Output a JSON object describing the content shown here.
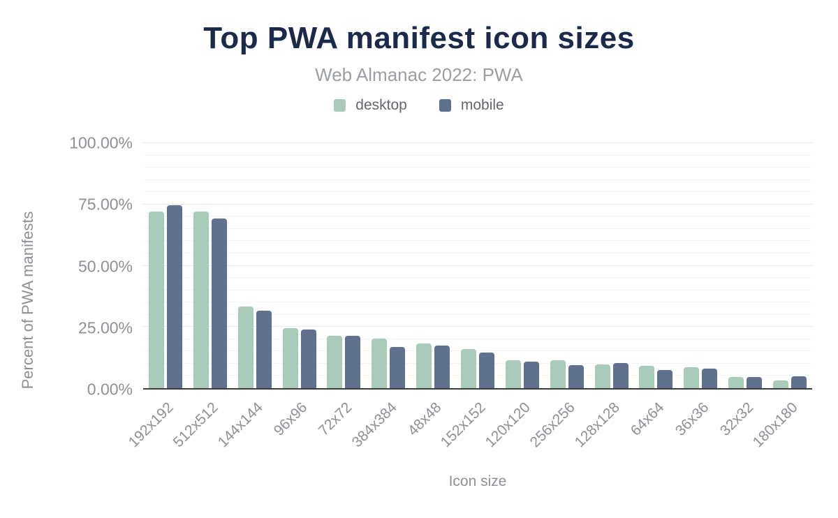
{
  "header": {
    "title": "Top PWA manifest icon sizes",
    "subtitle": "Web Almanac 2022: PWA"
  },
  "colors": {
    "title": "#1b2a4b",
    "desktop_bar": "#a8cbba",
    "mobile_bar": "#5f718e",
    "axis_line": "#3d3d3d",
    "tick_text": "#8d9195"
  },
  "y_axis": {
    "label": "Percent of PWA manifests",
    "ticks": [
      "0.00%",
      "25.00%",
      "50.00%",
      "75.00%",
      "100.00%"
    ],
    "tick_positions": [
      0,
      25,
      50,
      75,
      100
    ]
  },
  "x_axis": {
    "label": "Icon size"
  },
  "chart_data": {
    "type": "bar",
    "title": "Top PWA manifest icon sizes",
    "subtitle": "Web Almanac 2022: PWA",
    "xlabel": "Icon size",
    "ylabel": "Percent of PWA manifests",
    "ylim": [
      0,
      100
    ],
    "grid": true,
    "minor_grid_interval": 5,
    "major_grid_interval": 25,
    "legend_position": "top",
    "categories": [
      "192x192",
      "512x512",
      "144x144",
      "96x96",
      "72x72",
      "384x384",
      "48x48",
      "152x152",
      "120x120",
      "256x256",
      "128x128",
      "64x64",
      "36x36",
      "32x32",
      "180x180"
    ],
    "series": [
      {
        "name": "desktop",
        "color": "#a8cbba",
        "values": [
          72.2,
          72.2,
          33.4,
          24.4,
          21.5,
          20.3,
          18.1,
          15.9,
          11.3,
          11.3,
          9.6,
          9.1,
          8.5,
          4.5,
          3.2
        ]
      },
      {
        "name": "mobile",
        "color": "#5f718e",
        "values": [
          74.6,
          69.1,
          31.6,
          23.8,
          21.3,
          16.9,
          17.4,
          14.5,
          10.8,
          9.4,
          10.2,
          7.4,
          7.9,
          4.7,
          4.8
        ]
      }
    ]
  }
}
